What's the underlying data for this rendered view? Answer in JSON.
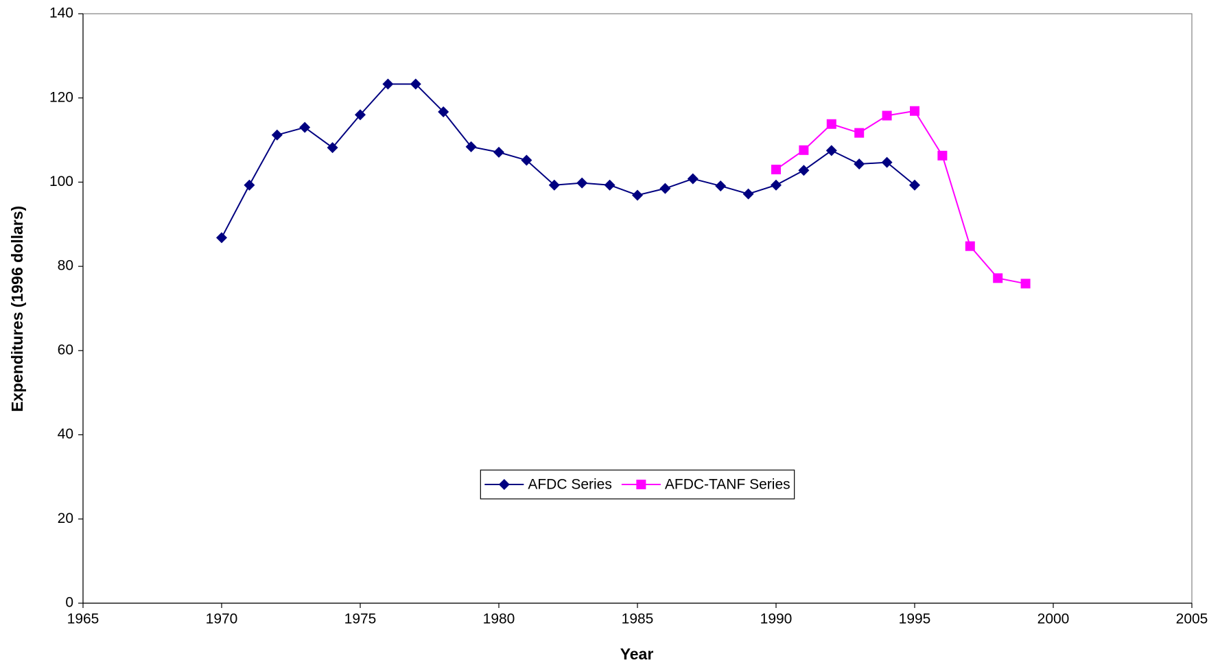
{
  "chart_data": {
    "type": "line",
    "x_label": "Year",
    "y_label": "Expenditures (1996 dollars)",
    "x": [
      1970,
      1971,
      1972,
      1973,
      1974,
      1975,
      1976,
      1977,
      1978,
      1979,
      1980,
      1981,
      1982,
      1983,
      1984,
      1985,
      1986,
      1987,
      1988,
      1989,
      1990,
      1991,
      1992,
      1993,
      1994,
      1995,
      1996,
      1997,
      1998,
      1999
    ],
    "series": [
      {
        "name": "AFDC Series",
        "color": "#000080",
        "marker": "diamond",
        "values": [
          86.8,
          99.3,
          111.2,
          113.0,
          108.2,
          116.0,
          123.3,
          123.3,
          116.7,
          108.4,
          107.1,
          105.2,
          99.3,
          99.8,
          99.3,
          96.9,
          98.5,
          100.8,
          99.1,
          97.2,
          99.3,
          102.8,
          107.5,
          104.3,
          104.7,
          99.3,
          null,
          null,
          null,
          null
        ]
      },
      {
        "name": "AFDC-TANF Series",
        "color": "#ff00ff",
        "marker": "square",
        "values": [
          null,
          null,
          null,
          null,
          null,
          null,
          null,
          null,
          null,
          null,
          null,
          null,
          null,
          null,
          null,
          null,
          null,
          null,
          null,
          null,
          103.0,
          107.6,
          113.8,
          111.7,
          115.8,
          116.9,
          106.3,
          84.8,
          77.2,
          75.9
        ]
      }
    ],
    "xlim": [
      1965,
      2005
    ],
    "xticks": [
      1965,
      1970,
      1975,
      1980,
      1985,
      1990,
      1995,
      2000,
      2005
    ],
    "ylim": [
      0,
      140
    ],
    "yticks": [
      0,
      20,
      40,
      60,
      80,
      100,
      120,
      140
    ],
    "grid": false,
    "legend": "bottom-center"
  }
}
